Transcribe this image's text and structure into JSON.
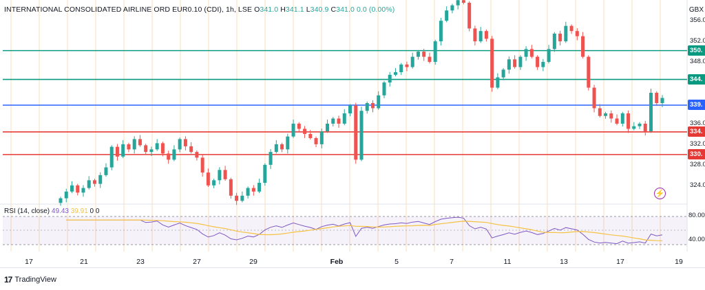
{
  "header": {
    "symbol_text": "INTERNATIONAL CONSOLIDATED AIRLINE ORD EUR0.10 (CDI), 1h, LSE",
    "open_label": "O",
    "open_value": "341.0",
    "high_label": "H",
    "high_value": "341.1",
    "low_label": "L",
    "low_value": "340.9",
    "close_label": "C",
    "close_value": "341.0",
    "change_value": "0.0 (0.00%)",
    "currency": "GBX"
  },
  "rsi_legend": {
    "name": "RSI (14, close)",
    "rsi_value": "49.43",
    "ma_value": "39.91",
    "extra1": "0",
    "extra2": "0"
  },
  "brand": {
    "name": "TradingView"
  },
  "colors": {
    "up": "#26a69a",
    "down": "#ef5350",
    "support": "#e53935",
    "resistance": "#089981",
    "pivot": "#2962ff",
    "rsi": "#7e57c2",
    "rsi_ma": "#f5c241",
    "vgrid": "#fde3c7"
  },
  "chart_data": [
    {
      "type": "candlestick",
      "title": "",
      "x_ticks": [
        "17",
        "21",
        "23",
        "27",
        "29",
        "Feb",
        "5",
        "7",
        "11",
        "13",
        "17",
        "19"
      ],
      "y_ticks_visible": [
        "356.0",
        "352.0",
        "348.0",
        "344.0",
        "340.0",
        "336.0",
        "332.0",
        "328.0",
        "324.0"
      ],
      "ylim": [
        320.5,
        359.5
      ],
      "grid": true,
      "horizontal_levels": [
        {
          "value": 350.2,
          "label": "350.",
          "color": "resistance"
        },
        {
          "value": 344.6,
          "label": "344.",
          "color": "resistance"
        },
        {
          "value": 339.6,
          "label": "339.",
          "color": "pivot"
        },
        {
          "value": 334.4,
          "label": "334.",
          "color": "support"
        },
        {
          "value": 330.0,
          "label": "330.",
          "color": "support"
        }
      ],
      "closes": [
        321.5,
        322.8,
        324.0,
        322.6,
        323.5,
        325.0,
        324.3,
        326.0,
        327.5,
        331.5,
        329.6,
        332.0,
        331.0,
        333.0,
        331.8,
        330.5,
        331.0,
        332.2,
        330.2,
        329.0,
        331.0,
        333.0,
        331.6,
        330.5,
        329.4,
        326.5,
        324.0,
        325.0,
        327.0,
        325.2,
        322.0,
        321.0,
        322.0,
        323.5,
        322.8,
        324.5,
        328.0,
        330.5,
        332.0,
        331.0,
        333.5,
        336.0,
        335.0,
        334.0,
        333.2,
        332.0,
        334.5,
        336.0,
        337.0,
        336.0,
        338.0,
        339.5,
        329.0,
        338.5,
        340.0,
        339.0,
        341.5,
        344.0,
        345.5,
        346.0,
        347.5,
        347.0,
        349.0,
        350.0,
        349.0,
        348.0,
        352.0,
        356.0,
        358.0,
        359.0,
        360.0,
        359.5,
        354.5,
        352.0,
        354.0,
        352.5,
        343.0,
        345.0,
        346.5,
        348.5,
        347.0,
        349.0,
        350.5,
        349.0,
        347.0,
        348.0,
        350.5,
        353.5,
        352.0,
        355.0,
        354.0,
        353.0,
        349.0,
        343.0,
        339.0,
        337.5,
        338.0,
        337.0,
        336.0,
        338.0,
        335.0,
        335.5,
        336.0,
        334.5,
        342.0,
        340.0,
        341.0
      ]
    },
    {
      "type": "line",
      "title": "RSI (14, close)",
      "y_ticks_visible": [
        "80.00",
        "40.00"
      ],
      "ylim": [
        20,
        90
      ],
      "bands": [
        30,
        70
      ]
    }
  ]
}
